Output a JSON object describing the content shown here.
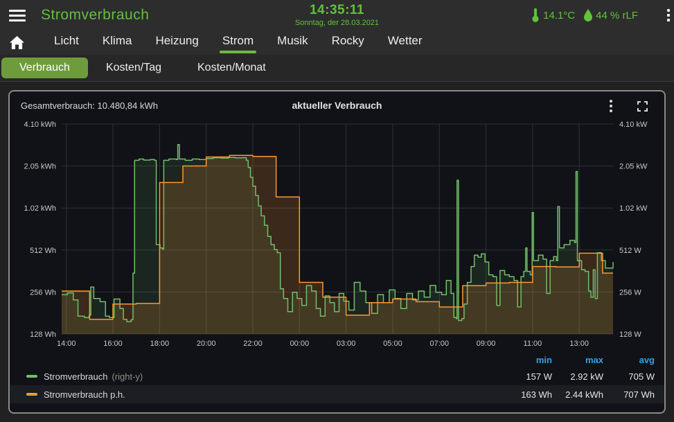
{
  "header": {
    "title": "Stromverbrauch",
    "time": "14:35:11",
    "date": "Sonntag, der 28.03.2021",
    "temperature": "14.1°C",
    "humidity": "44 % rLF",
    "icons": [
      "menu-icon",
      "thermometer-icon",
      "droplet-icon",
      "kebab-menu-icon"
    ],
    "accent_green": "#62c13c"
  },
  "nav": {
    "home_icon": "home-icon",
    "tabs": [
      "Licht",
      "Klima",
      "Heizung",
      "Strom",
      "Musik",
      "Rocky",
      "Wetter"
    ],
    "active": "Strom",
    "underline_color": "#71b944"
  },
  "subnav": {
    "tabs": [
      "Verbrauch",
      "Kosten/Tag",
      "Kosten/Monat"
    ],
    "active": "Verbrauch",
    "active_bg": "#6e9c3d"
  },
  "panel": {
    "total_label": "Gesamtverbrauch: 10.480,84 kWh",
    "title": "aktueller Verbrauch",
    "icons": [
      "kebab-menu-icon",
      "fullscreen-icon"
    ],
    "background": "#111217"
  },
  "legend": {
    "columns": [
      "min",
      "max",
      "avg"
    ],
    "header_color": "#33a2e5",
    "series": [
      {
        "name": "Stromverbrauch",
        "suffix": "(right-y)",
        "color": "#73bf69",
        "min": "157 W",
        "max": "2.92 kW",
        "avg": "705 W"
      },
      {
        "name": "Stromverbrauch p.h.",
        "suffix": "",
        "color": "#ff9830",
        "min": "163 Wh",
        "max": "2.44 kWh",
        "avg": "707 Wh"
      }
    ]
  },
  "chart_data": {
    "type": "line",
    "title": "aktueller Verbrauch",
    "y_scale": "log2",
    "y_min": 128,
    "y_max": 4096,
    "grid": true,
    "x_axis_note": "time axis 14:00 to 14:35 next day; 02:00 skipped (DST change 28.03.2021)",
    "y_ticks": [
      {
        "value": 4096,
        "left": "4.10 kWh",
        "right": "4.10 kW"
      },
      {
        "value": 2048,
        "left": "2.05 kWh",
        "right": "2.05 kW"
      },
      {
        "value": 1024,
        "left": "1.02 kWh",
        "right": "1.02 kW"
      },
      {
        "value": 512,
        "left": "512 Wh",
        "right": "512 W"
      },
      {
        "value": 256,
        "left": "256 Wh",
        "right": "256 W"
      },
      {
        "value": 128,
        "left": "128 Wh",
        "right": "128 W"
      }
    ],
    "x_ticks": [
      {
        "t": 0,
        "label": "14:00"
      },
      {
        "t": 2,
        "label": "16:00"
      },
      {
        "t": 4,
        "label": "18:00"
      },
      {
        "t": 6,
        "label": "20:00"
      },
      {
        "t": 8,
        "label": "22:00"
      },
      {
        "t": 10,
        "label": "00:00"
      },
      {
        "t": 12,
        "label": "03:00"
      },
      {
        "t": 14,
        "label": "05:00"
      },
      {
        "t": 16,
        "label": "07:00"
      },
      {
        "t": 18,
        "label": "09:00"
      },
      {
        "t": 20,
        "label": "11:00"
      },
      {
        "t": 22,
        "label": "13:00"
      }
    ],
    "t_start": -0.2,
    "t_end": 23.45,
    "series": [
      {
        "name": "Stromverbrauch",
        "axis": "right",
        "unit": "W",
        "color": "#73bf69",
        "fill": "rgba(115,191,105,0.12)",
        "min": 157,
        "max": 2920,
        "avg": 705,
        "points": [
          [
            -0.2,
            245
          ],
          [
            0.05,
            252
          ],
          [
            0.3,
            225
          ],
          [
            0.5,
            172
          ],
          [
            0.78,
            168
          ],
          [
            0.98,
            175
          ],
          [
            1.05,
            278
          ],
          [
            1.18,
            230
          ],
          [
            1.45,
            218
          ],
          [
            1.68,
            172
          ],
          [
            1.85,
            168
          ],
          [
            2.05,
            228
          ],
          [
            2.3,
            195
          ],
          [
            2.45,
            163
          ],
          [
            2.6,
            157
          ],
          [
            2.78,
            162
          ],
          [
            2.86,
            350
          ],
          [
            2.93,
            2250
          ],
          [
            3.12,
            2300
          ],
          [
            3.32,
            2260
          ],
          [
            3.6,
            2280
          ],
          [
            3.78,
            2250
          ],
          [
            3.86,
            560
          ],
          [
            4.02,
            530
          ],
          [
            4.12,
            520
          ],
          [
            4.18,
            2250
          ],
          [
            4.4,
            2300
          ],
          [
            4.72,
            2280
          ],
          [
            4.78,
            2920
          ],
          [
            4.85,
            2300
          ],
          [
            5.1,
            2250
          ],
          [
            5.4,
            2300
          ],
          [
            5.7,
            2280
          ],
          [
            6.0,
            2320
          ],
          [
            6.3,
            2350
          ],
          [
            6.65,
            2330
          ],
          [
            6.95,
            2360
          ],
          [
            7.25,
            2340
          ],
          [
            7.55,
            2350
          ],
          [
            7.72,
            2250
          ],
          [
            7.8,
            2000
          ],
          [
            7.9,
            1700
          ],
          [
            8.0,
            1470
          ],
          [
            8.12,
            1260
          ],
          [
            8.24,
            1060
          ],
          [
            8.36,
            900
          ],
          [
            8.5,
            770
          ],
          [
            8.64,
            640
          ],
          [
            8.78,
            560
          ],
          [
            8.92,
            515
          ],
          [
            9.05,
            490
          ],
          [
            9.18,
            270
          ],
          [
            9.32,
            230
          ],
          [
            9.5,
            185
          ],
          [
            9.7,
            255
          ],
          [
            9.9,
            230
          ],
          [
            10.1,
            205
          ],
          [
            10.3,
            285
          ],
          [
            10.52,
            260
          ],
          [
            10.72,
            195
          ],
          [
            10.9,
            172
          ],
          [
            11.1,
            240
          ],
          [
            11.3,
            215
          ],
          [
            11.5,
            185
          ],
          [
            11.7,
            250
          ],
          [
            11.9,
            220
          ],
          [
            12.12,
            190
          ],
          [
            12.35,
            300
          ],
          [
            12.6,
            260
          ],
          [
            12.85,
            215
          ],
          [
            13.1,
            180
          ],
          [
            13.35,
            245
          ],
          [
            13.6,
            215
          ],
          [
            13.85,
            265
          ],
          [
            14.1,
            230
          ],
          [
            14.35,
            195
          ],
          [
            14.6,
            250
          ],
          [
            14.85,
            225
          ],
          [
            15.1,
            260
          ],
          [
            15.35,
            235
          ],
          [
            15.6,
            285
          ],
          [
            15.85,
            255
          ],
          [
            16.1,
            245
          ],
          [
            16.3,
            310
          ],
          [
            16.5,
            250
          ],
          [
            16.62,
            168
          ],
          [
            16.72,
            165
          ],
          [
            16.76,
            1620
          ],
          [
            16.82,
            160
          ],
          [
            16.96,
            165
          ],
          [
            17.06,
            210
          ],
          [
            17.2,
            300
          ],
          [
            17.36,
            390
          ],
          [
            17.5,
            470
          ],
          [
            17.66,
            455
          ],
          [
            17.8,
            480
          ],
          [
            17.96,
            420
          ],
          [
            18.12,
            340
          ],
          [
            18.3,
            330
          ],
          [
            18.46,
            205
          ],
          [
            18.6,
            365
          ],
          [
            18.8,
            340
          ],
          [
            19.0,
            330
          ],
          [
            19.2,
            310
          ],
          [
            19.36,
            200
          ],
          [
            19.5,
            330
          ],
          [
            19.62,
            360
          ],
          [
            19.7,
            530
          ],
          [
            19.76,
            360
          ],
          [
            19.9,
            340
          ],
          [
            19.98,
            950
          ],
          [
            20.04,
            430
          ],
          [
            20.25,
            470
          ],
          [
            20.45,
            440
          ],
          [
            20.6,
            250
          ],
          [
            20.75,
            430
          ],
          [
            20.9,
            460
          ],
          [
            21.02,
            430
          ],
          [
            21.08,
            1050
          ],
          [
            21.15,
            530
          ],
          [
            21.35,
            560
          ],
          [
            21.6,
            600
          ],
          [
            21.8,
            580
          ],
          [
            21.86,
            1870
          ],
          [
            21.92,
            430
          ],
          [
            22.1,
            370
          ],
          [
            22.25,
            360
          ],
          [
            22.4,
            260
          ],
          [
            22.5,
            235
          ],
          [
            22.6,
            370
          ],
          [
            22.68,
            230
          ],
          [
            22.78,
            490
          ],
          [
            22.95,
            430
          ],
          [
            23.12,
            380
          ],
          [
            23.45,
            420
          ]
        ]
      },
      {
        "name": "Stromverbrauch p.h.",
        "axis": "left",
        "unit": "Wh",
        "color": "#ff9830",
        "fill": "rgba(255,152,48,0.18)",
        "min": 163,
        "max": 2440,
        "avg": 707,
        "points": [
          [
            -0.2,
            260
          ],
          [
            1,
            163
          ],
          [
            2,
            210
          ],
          [
            3,
            212
          ],
          [
            4,
            1560
          ],
          [
            5,
            2050
          ],
          [
            6,
            2380
          ],
          [
            7,
            2440
          ],
          [
            8,
            2400
          ],
          [
            9,
            1230
          ],
          [
            10,
            300
          ],
          [
            11,
            235
          ],
          [
            12,
            175
          ],
          [
            13,
            215
          ],
          [
            14,
            228
          ],
          [
            15,
            218
          ],
          [
            16,
            200
          ],
          [
            17,
            284
          ],
          [
            18,
            297
          ],
          [
            19,
            300
          ],
          [
            20,
            390
          ],
          [
            21,
            387
          ],
          [
            22,
            486
          ],
          [
            23,
            350
          ]
        ]
      }
    ]
  }
}
